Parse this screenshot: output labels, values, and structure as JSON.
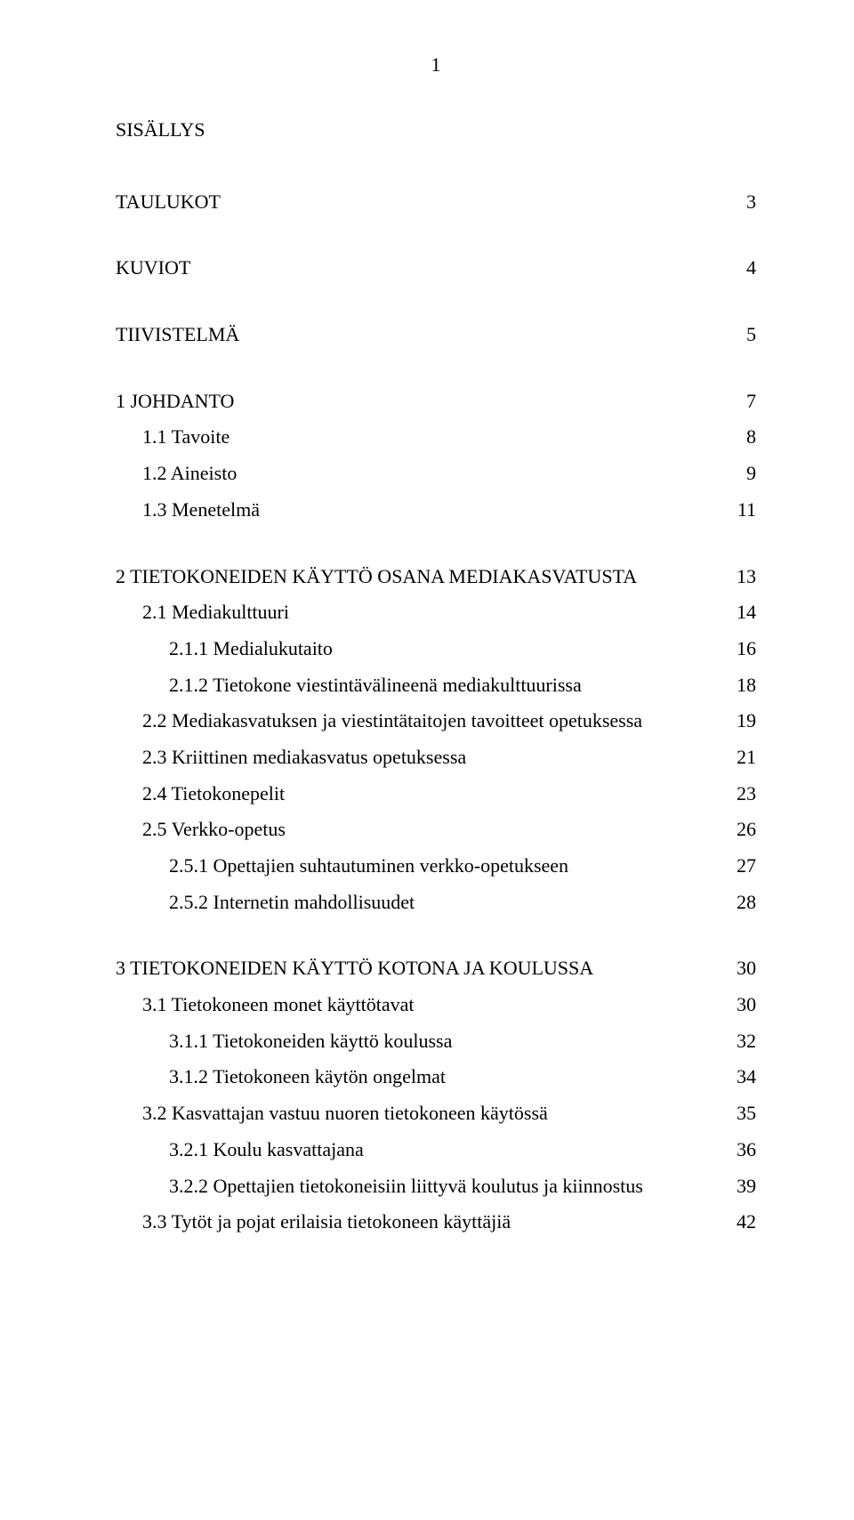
{
  "page_number_top": "1",
  "font": {
    "family": "Times New Roman",
    "size_body_pt": 22,
    "color": "#000000"
  },
  "background_color": "#ffffff",
  "entries": [
    {
      "label": "SISÄLLYS",
      "page": "",
      "indent": 0,
      "gap_after": "large"
    },
    {
      "label": "TAULUKOT",
      "page": "3",
      "indent": 0,
      "gap_after": "med"
    },
    {
      "label": "KUVIOT",
      "page": "4",
      "indent": 0,
      "gap_after": "med"
    },
    {
      "label": "TIIVISTELMÄ",
      "page": "5",
      "indent": 0,
      "gap_after": "med"
    },
    {
      "label": "1 JOHDANTO",
      "page": "7",
      "indent": 0
    },
    {
      "label": "1.1 Tavoite",
      "page": "8",
      "indent": 1
    },
    {
      "label": "1.2 Aineisto",
      "page": "9",
      "indent": 1
    },
    {
      "label": "1.3 Menetelmä",
      "page": "11",
      "indent": 1,
      "gap_after": "med"
    },
    {
      "label": "2 TIETOKONEIDEN KÄYTTÖ OSANA MEDIAKASVATUSTA",
      "page": "13",
      "indent": 0
    },
    {
      "label": "2.1 Mediakulttuuri",
      "page": "14",
      "indent": 1
    },
    {
      "label": "2.1.1 Medialukutaito",
      "page": "16",
      "indent": 2
    },
    {
      "label": "2.1.2 Tietokone viestintävälineenä mediakulttuurissa",
      "page": "18",
      "indent": 2
    },
    {
      "label": "2.2 Mediakasvatuksen ja viestintätaitojen tavoitteet opetuksessa",
      "page": "19",
      "indent": 1
    },
    {
      "label": "2.3 Kriittinen mediakasvatus opetuksessa",
      "page": "21",
      "indent": 1
    },
    {
      "label": "2.4 Tietokonepelit",
      "page": "23",
      "indent": 1
    },
    {
      "label": "2.5 Verkko-opetus",
      "page": "26",
      "indent": 1
    },
    {
      "label": "2.5.1 Opettajien suhtautuminen verkko-opetukseen",
      "page": "27",
      "indent": 2
    },
    {
      "label": "2.5.2 Internetin mahdollisuudet",
      "page": "28",
      "indent": 2,
      "gap_after": "med"
    },
    {
      "label": "3 TIETOKONEIDEN KÄYTTÖ KOTONA JA KOULUSSA",
      "page": "30",
      "indent": 0
    },
    {
      "label": "3.1 Tietokoneen monet käyttötavat",
      "page": "30",
      "indent": 1
    },
    {
      "label": "3.1.1 Tietokoneiden käyttö koulussa",
      "page": "32",
      "indent": 2
    },
    {
      "label": "3.1.2 Tietokoneen käytön ongelmat",
      "page": "34",
      "indent": 2
    },
    {
      "label": "3.2 Kasvattajan vastuu nuoren tietokoneen käytössä",
      "page": "35",
      "indent": 1
    },
    {
      "label": "3.2.1 Koulu kasvattajana",
      "page": "36",
      "indent": 2
    },
    {
      "label": "3.2.2 Opettajien tietokoneisiin liittyvä koulutus ja kiinnostus",
      "page": "39",
      "indent": 2
    },
    {
      "label": "3.3 Tytöt ja pojat erilaisia tietokoneen käyttäjiä",
      "page": "42",
      "indent": 1
    }
  ]
}
